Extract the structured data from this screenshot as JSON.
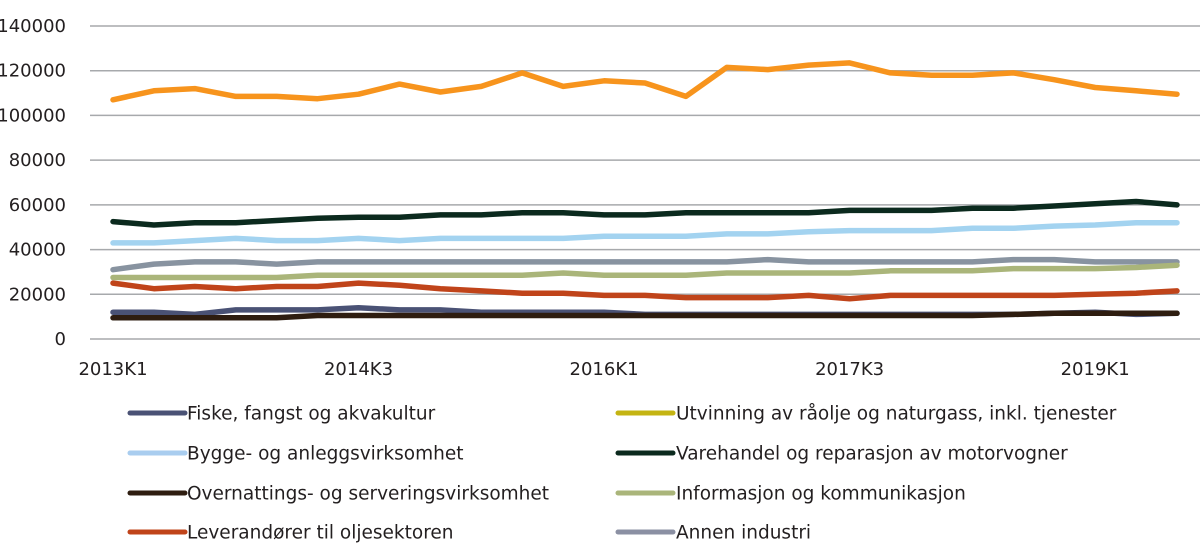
{
  "chart_data": {
    "type": "line",
    "title": "",
    "xlabel": "",
    "ylabel": "",
    "ylim": [
      0,
      140000
    ],
    "yticks": [
      0,
      20000,
      40000,
      60000,
      80000,
      100000,
      120000,
      140000
    ],
    "ytick_labels": [
      "0",
      "20000",
      "40000",
      "60000",
      "80000",
      "100000",
      "120000",
      "140000"
    ],
    "grid": true,
    "legend_position": "bottom",
    "x": [
      "2013K1",
      "2013K2",
      "2013K3",
      "2013K4",
      "2014K1",
      "2014K2",
      "2014K3",
      "2014K4",
      "2015K1",
      "2015K2",
      "2015K3",
      "2015K4",
      "2016K1",
      "2016K2",
      "2016K3",
      "2016K4",
      "2017K1",
      "2017K2",
      "2017K3",
      "2017K4",
      "2018K1",
      "2018K2",
      "2018K3",
      "2018K4",
      "2019K1",
      "2019K2",
      "2019K3"
    ],
    "xtick_labels": [
      {
        "index": 0,
        "label": "2013K1"
      },
      {
        "index": 6,
        "label": "2014K3"
      },
      {
        "index": 12,
        "label": "2016K1"
      },
      {
        "index": 18,
        "label": "2017K3"
      },
      {
        "index": 24,
        "label": "2019K1"
      }
    ],
    "series": [
      {
        "name": "Fiske, fangst og akvakultur",
        "line_color": "#4a5275",
        "legend_color": "#4a5275",
        "values": [
          12000,
          12000,
          11000,
          13000,
          13000,
          13000,
          14000,
          13000,
          13000,
          12000,
          12000,
          12000,
          12000,
          11000,
          11000,
          11000,
          11000,
          11000,
          11000,
          11000,
          11000,
          11000,
          11000,
          11500,
          12000,
          11000,
          11500
        ]
      },
      {
        "name": "Utvinning av råolje og naturgass, inkl. tjenester",
        "line_color": "#f7941d",
        "legend_color": "#c4b412",
        "values": [
          107000,
          111000,
          112000,
          108500,
          108500,
          107500,
          109500,
          114000,
          110500,
          113000,
          119000,
          113000,
          115500,
          114500,
          108500,
          121500,
          120500,
          122500,
          123500,
          119000,
          118000,
          118000,
          119000,
          116000,
          112500,
          111000,
          109500
        ]
      },
      {
        "name": "Bygge- og anleggsvirksomhet",
        "line_color": "#a3d3f0",
        "legend_color": "#a9cdef",
        "values": [
          43000,
          43000,
          44000,
          45000,
          44000,
          44000,
          45000,
          44000,
          45000,
          45000,
          45000,
          45000,
          46000,
          46000,
          46000,
          47000,
          47000,
          48000,
          48500,
          48500,
          48500,
          49500,
          49500,
          50500,
          51000,
          52000,
          52000
        ]
      },
      {
        "name": "Varehandel og reparasjon av motorvogner",
        "line_color": "#0b2a1e",
        "legend_color": "#0b2a1e",
        "values": [
          52500,
          51000,
          52000,
          52000,
          53000,
          54000,
          54500,
          54500,
          55500,
          55500,
          56500,
          56500,
          55500,
          55500,
          56500,
          56500,
          56500,
          56500,
          57500,
          57500,
          57500,
          58500,
          58500,
          59500,
          60500,
          61500,
          60000
        ]
      },
      {
        "name": "Overnattings- og serveringsvirksomhet",
        "line_color": "#2e1d10",
        "legend_color": "#2e1d10",
        "values": [
          9500,
          9500,
          9500,
          9500,
          9500,
          10500,
          10500,
          10500,
          10500,
          10500,
          10500,
          10500,
          10500,
          10500,
          10500,
          10500,
          10500,
          10500,
          10500,
          10500,
          10500,
          10500,
          11000,
          11500,
          11500,
          11500,
          11500
        ]
      },
      {
        "name": "Informasjon og kommunikasjon",
        "line_color": "#aab57a",
        "legend_color": "#aab57a",
        "values": [
          27500,
          27500,
          27500,
          27500,
          27500,
          28500,
          28500,
          28500,
          28500,
          28500,
          28500,
          29500,
          28500,
          28500,
          28500,
          29500,
          29500,
          29500,
          29500,
          30500,
          30500,
          30500,
          31500,
          31500,
          31500,
          32000,
          33000
        ]
      },
      {
        "name": "Leverandører til oljesektoren",
        "line_color": "#c0441a",
        "legend_color": "#c0441a",
        "values": [
          25000,
          22500,
          23500,
          22500,
          23500,
          23500,
          25000,
          24000,
          22500,
          21500,
          20500,
          20500,
          19500,
          19500,
          18500,
          18500,
          18500,
          19500,
          18000,
          19500,
          19500,
          19500,
          19500,
          19500,
          20000,
          20500,
          21500
        ]
      },
      {
        "name": "Annen industri",
        "line_color": "#8893a0",
        "legend_color": "#8b90a3",
        "values": [
          31000,
          33500,
          34500,
          34500,
          33500,
          34500,
          34500,
          34500,
          34500,
          34500,
          34500,
          34500,
          34500,
          34500,
          34500,
          34500,
          35500,
          34500,
          34500,
          34500,
          34500,
          34500,
          35500,
          35500,
          34500,
          34500,
          34500
        ]
      }
    ],
    "legend_order": [
      [
        "Fiske, fangst og akvakultur",
        "Utvinning av råolje og naturgass, inkl. tjenester"
      ],
      [
        "Bygge- og anleggsvirksomhet",
        "Varehandel og reparasjon av motorvogner"
      ],
      [
        "Overnattings- og serveringsvirksomhet",
        "Informasjon og kommunikasjon"
      ],
      [
        "Leverandører til oljesektoren",
        "Annen industri"
      ]
    ],
    "gridline_color": "#a7a9ac"
  }
}
